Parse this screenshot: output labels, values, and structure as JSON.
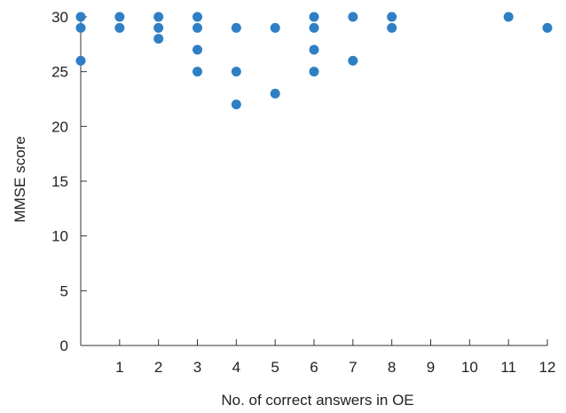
{
  "chart_data": {
    "type": "scatter",
    "title": "",
    "xlabel": "No. of correct answers in OE",
    "ylabel": "MMSE score",
    "xlim": [
      0,
      12
    ],
    "ylim": [
      0,
      30
    ],
    "xticks": [
      1,
      2,
      3,
      4,
      5,
      6,
      7,
      8,
      9,
      10,
      11,
      12
    ],
    "yticks": [
      0,
      5,
      10,
      15,
      20,
      25,
      30
    ],
    "grid": false,
    "marker_color": "#2e7fc4",
    "series": [
      {
        "points": [
          {
            "x": 0,
            "y": 30
          },
          {
            "x": 0,
            "y": 29
          },
          {
            "x": 0,
            "y": 26
          },
          {
            "x": 1,
            "y": 30
          },
          {
            "x": 1,
            "y": 29
          },
          {
            "x": 2,
            "y": 30
          },
          {
            "x": 2,
            "y": 29
          },
          {
            "x": 2,
            "y": 28
          },
          {
            "x": 3,
            "y": 30
          },
          {
            "x": 3,
            "y": 29
          },
          {
            "x": 3,
            "y": 27
          },
          {
            "x": 3,
            "y": 25
          },
          {
            "x": 4,
            "y": 29
          },
          {
            "x": 4,
            "y": 25
          },
          {
            "x": 4,
            "y": 22
          },
          {
            "x": 5,
            "y": 29
          },
          {
            "x": 5,
            "y": 23
          },
          {
            "x": 6,
            "y": 30
          },
          {
            "x": 6,
            "y": 29
          },
          {
            "x": 6,
            "y": 27
          },
          {
            "x": 6,
            "y": 25
          },
          {
            "x": 7,
            "y": 30
          },
          {
            "x": 7,
            "y": 26
          },
          {
            "x": 8,
            "y": 30
          },
          {
            "x": 8,
            "y": 29
          },
          {
            "x": 11,
            "y": 30
          },
          {
            "x": 12,
            "y": 29
          }
        ]
      }
    ]
  }
}
